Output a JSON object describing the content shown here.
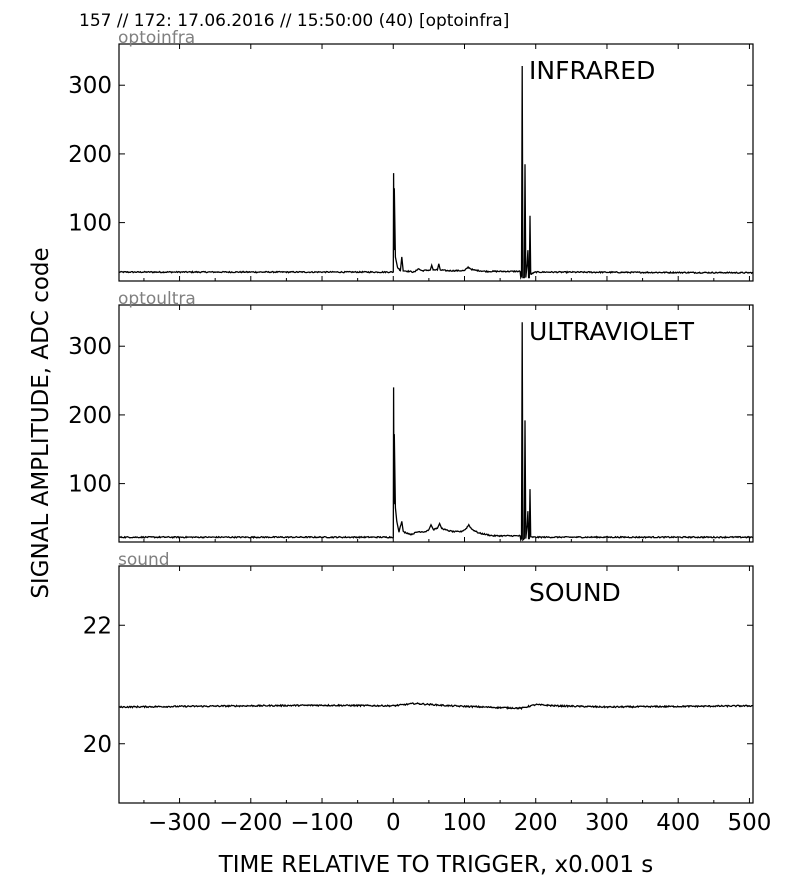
{
  "header": "157 // 172:   17.06.2016 // 15:50:00 (40)  [optoinfra]",
  "ylabel": "SIGNAL AMPLITUDE,  ADC code",
  "xlabel": "TIME RELATIVE TO TRIGGER,   x0.001 s",
  "chart_data": [
    {
      "type": "line",
      "channel_label": "optoinfra",
      "title": "INFRARED",
      "xlim": [
        -385,
        505
      ],
      "ylim": [
        15,
        360
      ],
      "xticks": [
        -300,
        -200,
        -100,
        0,
        100,
        200,
        300,
        400,
        500
      ],
      "yticks": [
        100,
        200,
        300
      ],
      "ytick_labels": [
        "100",
        "200",
        "300"
      ],
      "baseline": 28,
      "points": [
        [
          -385,
          28
        ],
        [
          0,
          28
        ],
        [
          0.5,
          172
        ],
        [
          1,
          60
        ],
        [
          1.5,
          150
        ],
        [
          3,
          50
        ],
        [
          6,
          35
        ],
        [
          10,
          30
        ],
        [
          12,
          50
        ],
        [
          14,
          30
        ],
        [
          30,
          28
        ],
        [
          35,
          33
        ],
        [
          40,
          30
        ],
        [
          52,
          31
        ],
        [
          54,
          38
        ],
        [
          56,
          31
        ],
        [
          62,
          31
        ],
        [
          64,
          40
        ],
        [
          66,
          31
        ],
        [
          75,
          30
        ],
        [
          100,
          30
        ],
        [
          105,
          35
        ],
        [
          112,
          31
        ],
        [
          130,
          29
        ],
        [
          178,
          29
        ],
        [
          179,
          20
        ],
        [
          180,
          22
        ],
        [
          181,
          328
        ],
        [
          182,
          20
        ],
        [
          184,
          20
        ],
        [
          185,
          185
        ],
        [
          186,
          20
        ],
        [
          188,
          40
        ],
        [
          189,
          60
        ],
        [
          190,
          20
        ],
        [
          191,
          20
        ],
        [
          192,
          110
        ],
        [
          193,
          25
        ],
        [
          200,
          28
        ],
        [
          505,
          27
        ]
      ]
    },
    {
      "type": "line",
      "channel_label": "optoultra",
      "title": "ULTRAVIOLET",
      "xlim": [
        -385,
        505
      ],
      "ylim": [
        15,
        360
      ],
      "xticks": [
        -300,
        -200,
        -100,
        0,
        100,
        200,
        300,
        400,
        500
      ],
      "yticks": [
        100,
        200,
        300
      ],
      "ytick_labels": [
        "100",
        "200",
        "300"
      ],
      "baseline": 22,
      "points": [
        [
          -385,
          22
        ],
        [
          0,
          22
        ],
        [
          0.5,
          240
        ],
        [
          1,
          70
        ],
        [
          1.5,
          172
        ],
        [
          3,
          65
        ],
        [
          5,
          45
        ],
        [
          8,
          30
        ],
        [
          12,
          45
        ],
        [
          14,
          30
        ],
        [
          25,
          26
        ],
        [
          35,
          30
        ],
        [
          45,
          30
        ],
        [
          50,
          33
        ],
        [
          53,
          40
        ],
        [
          56,
          33
        ],
        [
          62,
          35
        ],
        [
          65,
          42
        ],
        [
          68,
          35
        ],
        [
          75,
          32
        ],
        [
          85,
          30
        ],
        [
          95,
          30
        ],
        [
          102,
          34
        ],
        [
          106,
          40
        ],
        [
          110,
          34
        ],
        [
          120,
          28
        ],
        [
          140,
          24
        ],
        [
          178,
          24
        ],
        [
          179,
          18
        ],
        [
          180,
          20
        ],
        [
          181,
          335
        ],
        [
          182,
          18
        ],
        [
          184,
          20
        ],
        [
          185,
          192
        ],
        [
          186,
          20
        ],
        [
          188,
          40
        ],
        [
          189,
          60
        ],
        [
          190,
          20
        ],
        [
          191,
          20
        ],
        [
          192,
          92
        ],
        [
          193,
          22
        ],
        [
          200,
          22
        ],
        [
          505,
          22
        ]
      ]
    },
    {
      "type": "line",
      "channel_label": "sound",
      "title": "SOUND",
      "xlim": [
        -385,
        505
      ],
      "ylim": [
        19,
        23
      ],
      "xticks": [
        -300,
        -200,
        -100,
        0,
        100,
        200,
        300,
        400,
        500
      ],
      "yticks": [
        20,
        22
      ],
      "ytick_labels": [
        "20",
        "22"
      ],
      "baseline": 20.62,
      "points": [
        [
          -385,
          20.62
        ],
        [
          -300,
          20.63
        ],
        [
          -200,
          20.64
        ],
        [
          -100,
          20.65
        ],
        [
          0,
          20.64
        ],
        [
          30,
          20.68
        ],
        [
          80,
          20.64
        ],
        [
          150,
          20.61
        ],
        [
          180,
          20.6
        ],
        [
          200,
          20.66
        ],
        [
          230,
          20.64
        ],
        [
          300,
          20.62
        ],
        [
          400,
          20.63
        ],
        [
          505,
          20.64
        ]
      ]
    }
  ],
  "xtick_labels": [
    "−300",
    "−200",
    "−100",
    "0",
    "100",
    "200",
    "300",
    "400",
    "500"
  ]
}
